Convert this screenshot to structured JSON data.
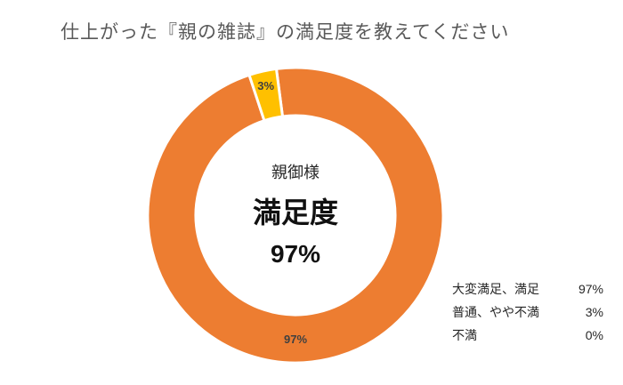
{
  "title": "仕上がった『親の雑誌』の満足度を教えてください",
  "center": {
    "subtitle": "親御様",
    "main": "満足度",
    "value": "97%"
  },
  "legend": [
    {
      "label": "大変満足、満足",
      "value": "97%"
    },
    {
      "label": "普通、やや不満",
      "value": "3%"
    },
    {
      "label": "不満",
      "value": "0%"
    }
  ],
  "colors": {
    "satisfied": "#ED7D31",
    "neutral": "#FFC000",
    "dissatisfied": "#A5A5A5"
  },
  "chart_data": {
    "type": "pie",
    "style": "donut",
    "title": "仕上がった『親の雑誌』の満足度を教えてください",
    "categories": [
      "大変満足、満足",
      "普通、やや不満",
      "不満"
    ],
    "values": [
      97,
      3,
      0
    ],
    "data_labels": [
      "97%",
      "3%",
      ""
    ],
    "legend_position": "bottom-right"
  }
}
